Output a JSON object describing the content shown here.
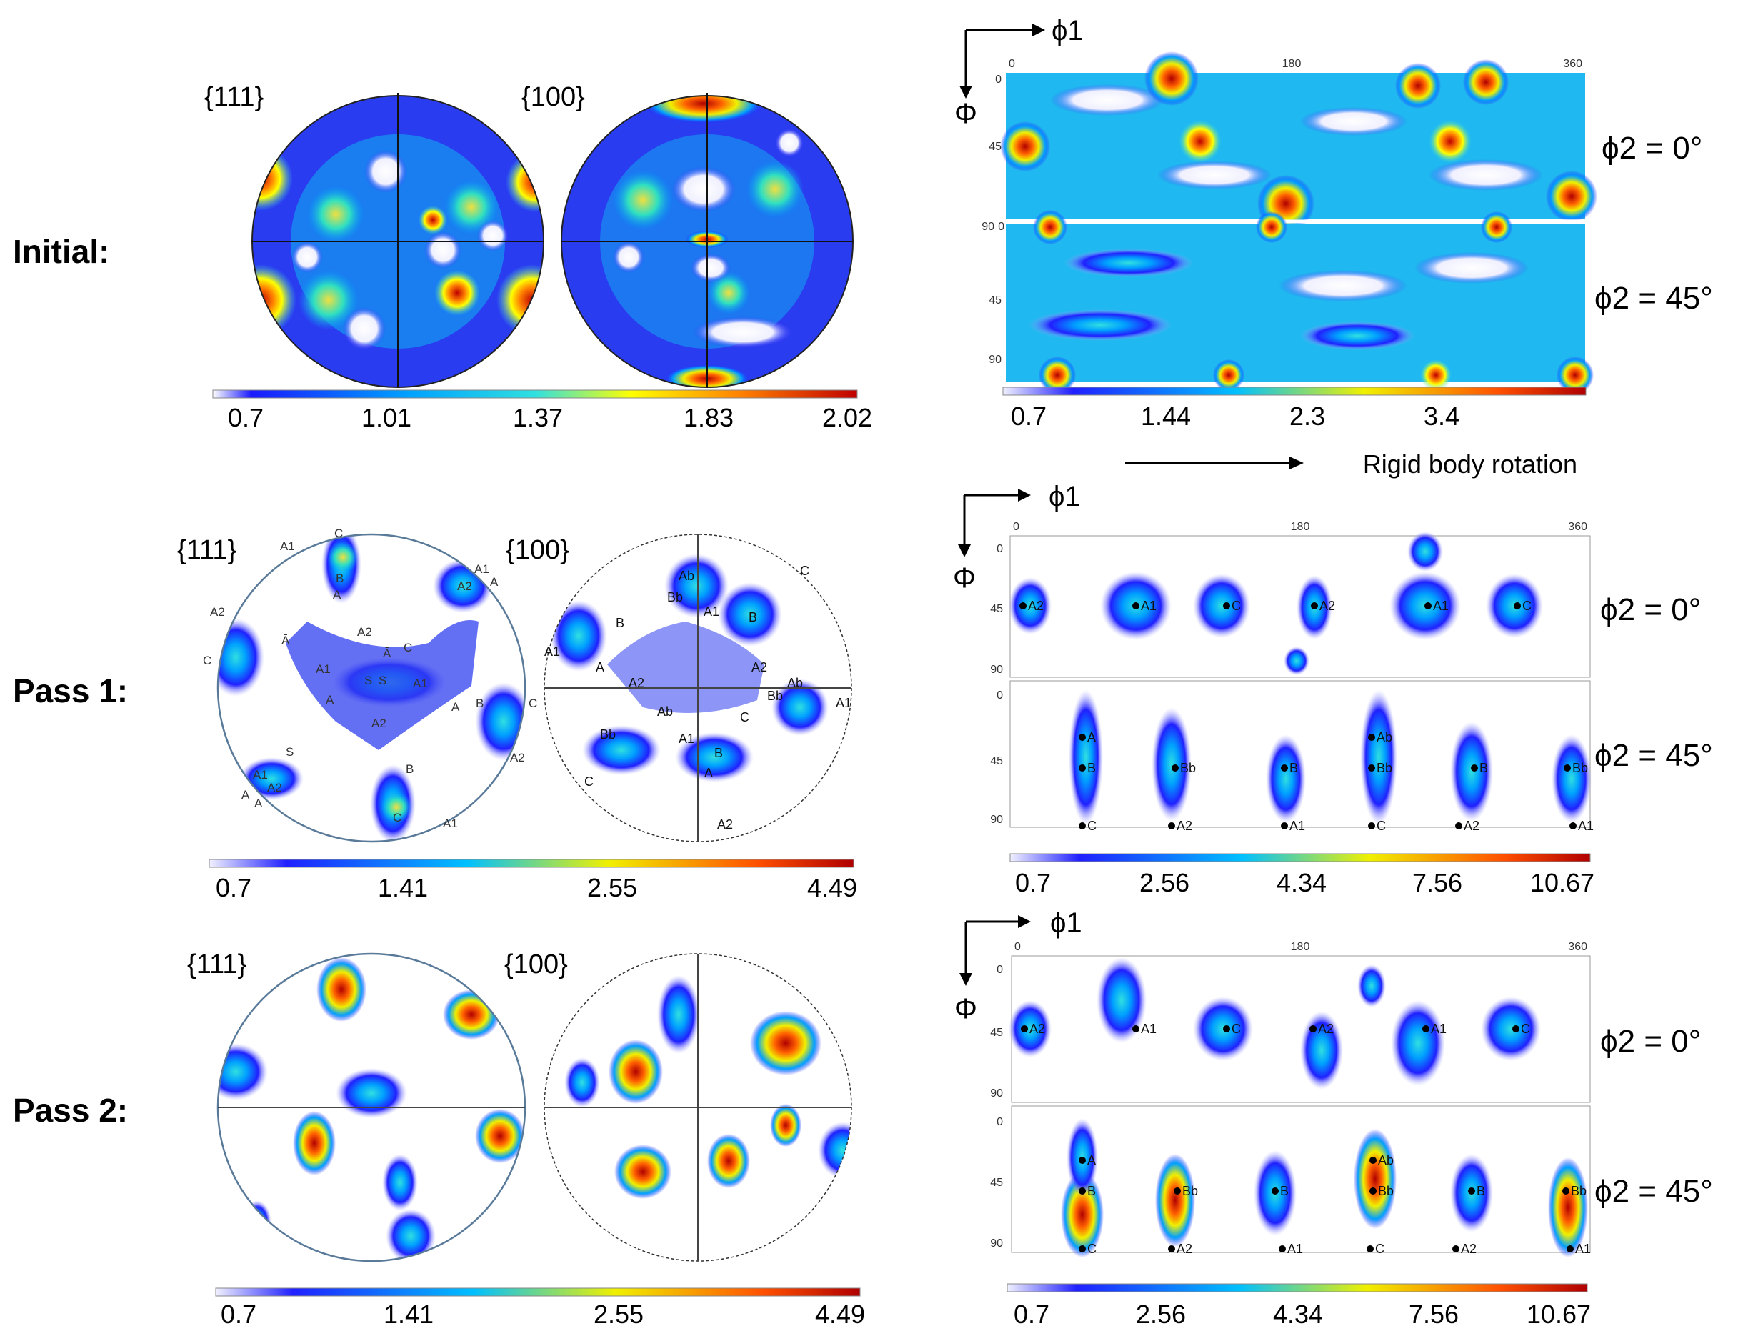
{
  "rows": [
    {
      "label": "Initial:",
      "pole_figures": [
        "{111}",
        "{100}"
      ],
      "pf_scale": [
        "0.7",
        "1.01",
        "1.37",
        "1.83",
        "2.02"
      ],
      "odf_scale": [
        "0.7",
        "1.44",
        "2.3",
        "3.4"
      ],
      "odf_ticks": {
        "x": [
          "0",
          "180",
          "360"
        ],
        "y_top": [
          "0",
          "45"
        ],
        "y_bottom": [
          "90",
          "0",
          "45",
          "90"
        ]
      },
      "phi2": [
        "ϕ2 = 0°",
        "ϕ2 = 45°"
      ]
    },
    {
      "label": "Pass 1:",
      "pole_figures": [
        "{111}",
        "{100}"
      ],
      "pf_scale": [
        "0.7",
        "1.41",
        "2.55",
        "4.49"
      ],
      "odf_scale": [
        "0.7",
        "2.56",
        "4.34",
        "7.56",
        "10.67"
      ],
      "odf_ticks": {
        "x": [
          "0",
          "180",
          "360"
        ],
        "y_top": [
          "0",
          "45",
          "90"
        ],
        "y_bottom": [
          "0",
          "45",
          "90"
        ]
      },
      "phi2": [
        "ϕ2 = 0°",
        "ϕ2 = 45°"
      ]
    },
    {
      "label": "Pass 2:",
      "pole_figures": [
        "{111}",
        "{100}"
      ],
      "pf_scale": [
        "0.7",
        "1.41",
        "2.55",
        "4.49"
      ],
      "odf_scale": [
        "0.7",
        "2.56",
        "4.34",
        "7.56",
        "10.67"
      ],
      "odf_ticks": {
        "x": [
          "0",
          "180",
          "360"
        ],
        "y_top": [
          "0",
          "45",
          "90"
        ],
        "y_bottom": [
          "0",
          "45",
          "90"
        ]
      },
      "phi2": [
        "ϕ2 = 0°",
        "ϕ2 = 45°"
      ]
    }
  ],
  "axes": {
    "phi1": "ϕ1",
    "Phi": "Φ"
  },
  "rigid_body_rotation": "Rigid body rotation",
  "odf_markers_top": [
    "A2",
    "A1",
    "C",
    "A2",
    "A1",
    "C"
  ],
  "odf_markers_bottom": [
    [
      "A",
      "B",
      "C"
    ],
    [
      "Bb",
      "A2"
    ],
    [
      "B",
      "A1"
    ],
    [
      "Ab",
      "Bb",
      "C"
    ],
    [
      "B",
      "A2"
    ],
    [
      "Bb",
      "A1"
    ]
  ],
  "pf111_markers": [
    "A1",
    "C",
    "B",
    "A",
    "A1",
    "A2",
    "A",
    "A2",
    "Ā",
    "C",
    "Ā",
    "A2",
    "C",
    "A1",
    "S",
    "S",
    "A1",
    "A",
    "B",
    "C",
    "A2",
    "A",
    "A2",
    "S",
    "A1",
    "Ā",
    "A",
    "A2",
    "B",
    "C",
    "A1"
  ],
  "pf100_markers": [
    "Ab",
    "Bb",
    "A1",
    "B",
    "C",
    "A1",
    "B",
    "A",
    "A2",
    "A2",
    "Ab",
    "Bb",
    "Ab",
    "A1",
    "Bb",
    "A1",
    "B",
    "C",
    "A",
    "C",
    "A2"
  ]
}
